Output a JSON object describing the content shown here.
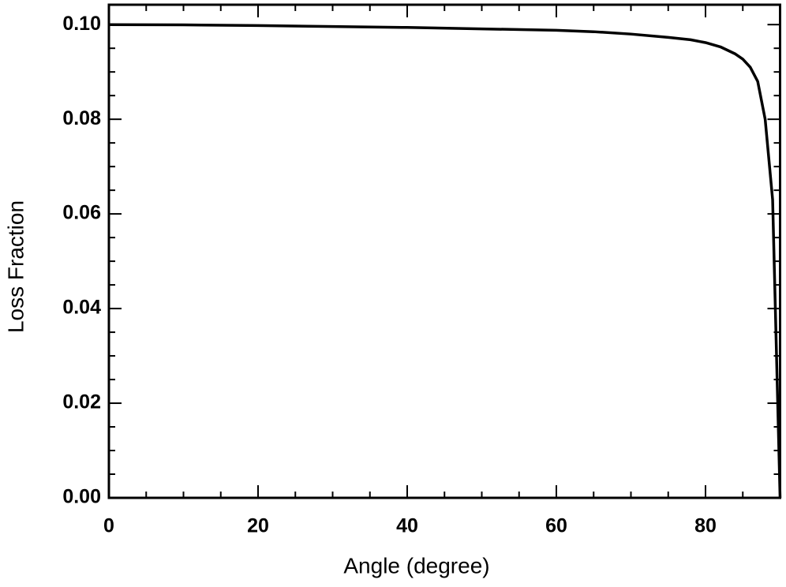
{
  "chart_data": {
    "type": "line",
    "x_label": "Angle (degree)",
    "y_label": "Loss Fraction",
    "x": [
      0,
      10,
      20,
      30,
      40,
      50,
      60,
      65,
      70,
      75,
      78,
      80,
      82,
      84,
      85,
      86,
      87,
      88,
      89,
      90
    ],
    "values": [
      0.1,
      0.09995,
      0.0998,
      0.0996,
      0.0994,
      0.0991,
      0.0988,
      0.0985,
      0.098,
      0.0973,
      0.0968,
      0.0962,
      0.0953,
      0.0938,
      0.0927,
      0.091,
      0.088,
      0.08,
      0.063,
      0.0
    ],
    "color": "#000000",
    "xlim": [
      0,
      90
    ],
    "ylim": [
      0,
      0.1042
    ],
    "xticks": [
      0,
      20,
      40,
      60,
      80
    ],
    "yticks": [
      {
        "value": 0,
        "label": "0.00"
      },
      {
        "value": 0.02,
        "label": "0.02"
      },
      {
        "value": 0.04,
        "label": "0.04"
      },
      {
        "value": 0.06,
        "label": "0.06"
      },
      {
        "value": 0.08,
        "label": "0.08"
      },
      {
        "value": 0.1,
        "label": "0.10"
      }
    ]
  }
}
